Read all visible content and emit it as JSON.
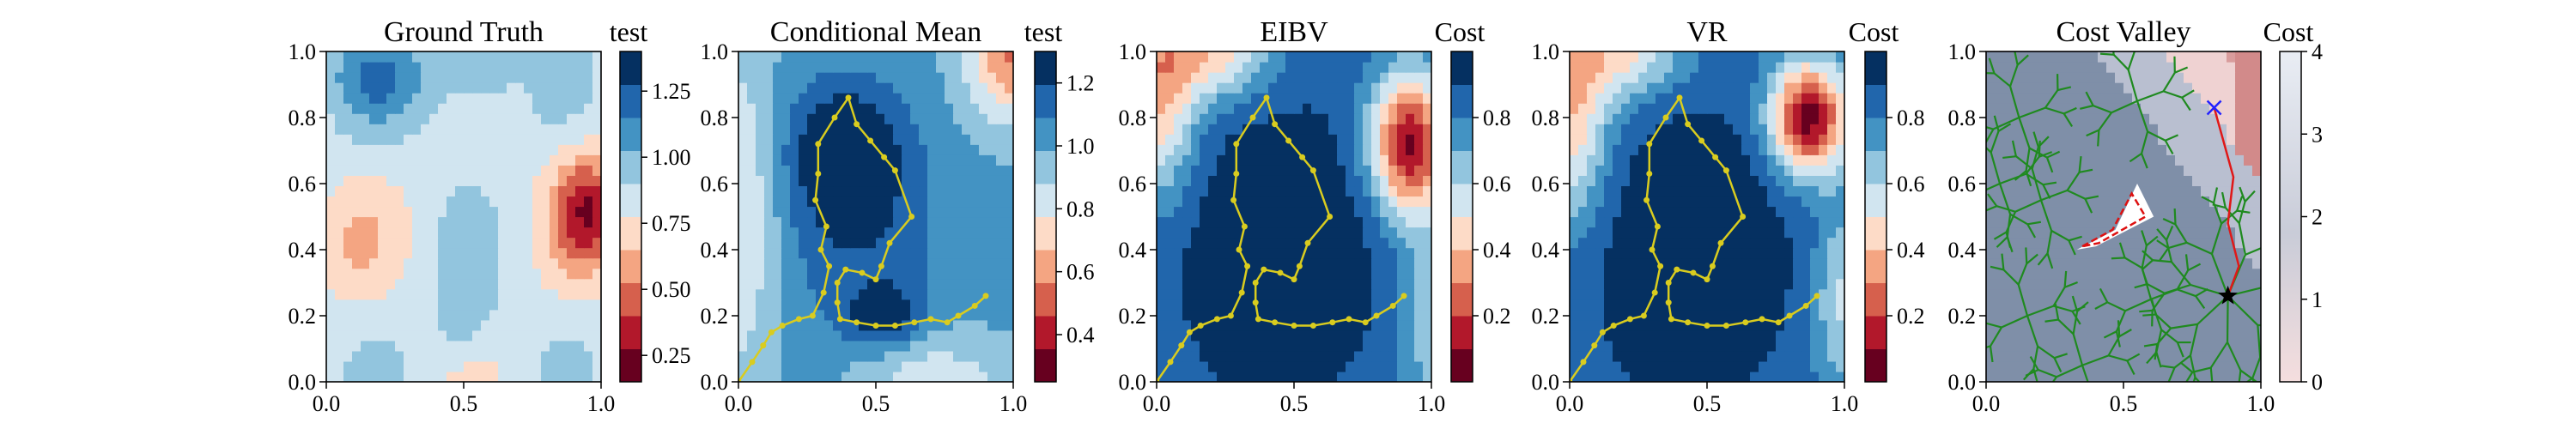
{
  "chart_data": [
    {
      "type": "heatmap",
      "title": "Ground Truth",
      "colorbar_label": "test",
      "colormap": "RdBu",
      "levels": 10,
      "xlim": [
        0,
        1
      ],
      "ylim": [
        0,
        1
      ],
      "xticks": [
        "0.0",
        "0.5",
        "1.0"
      ],
      "yticks": [
        "0.0",
        "0.2",
        "0.4",
        "0.6",
        "0.8",
        "1.0"
      ],
      "colorbar_range": [
        0.15,
        1.4
      ],
      "colorbar_ticks": [
        {
          "value": 0.25,
          "label": "0.25"
        },
        {
          "value": 0.5,
          "label": "0.50"
        },
        {
          "value": 0.75,
          "label": "0.75"
        },
        {
          "value": 1.0,
          "label": "1.00"
        },
        {
          "value": 1.25,
          "label": "1.25"
        }
      ]
    },
    {
      "type": "heatmap",
      "title": "Conditional Mean",
      "colorbar_label": "test",
      "colormap": "RdBu",
      "levels": 10,
      "xlim": [
        0,
        1
      ],
      "ylim": [
        0,
        1
      ],
      "xticks": [
        "0.0",
        "0.5",
        "1.0"
      ],
      "yticks": [
        "0.0",
        "0.2",
        "0.4",
        "0.6",
        "0.8",
        "1.0"
      ],
      "colorbar_range": [
        0.25,
        1.3
      ],
      "colorbar_ticks": [
        {
          "value": 0.4,
          "label": "0.4"
        },
        {
          "value": 0.6,
          "label": "0.6"
        },
        {
          "value": 0.8,
          "label": "0.8"
        },
        {
          "value": 1.0,
          "label": "1.0"
        },
        {
          "value": 1.2,
          "label": "1.2"
        }
      ],
      "path": "yellow"
    },
    {
      "type": "heatmap",
      "title": "EIBV",
      "colorbar_label": "Cost",
      "colormap": "RdBu",
      "levels": 10,
      "xlim": [
        0,
        1
      ],
      "ylim": [
        0,
        1
      ],
      "xticks": [
        "0.0",
        "0.5",
        "1.0"
      ],
      "yticks": [
        "0.0",
        "0.2",
        "0.4",
        "0.6",
        "0.8",
        "1.0"
      ],
      "colorbar_range": [
        0.0,
        1.0
      ],
      "colorbar_ticks": [
        {
          "value": 0.2,
          "label": "0.2"
        },
        {
          "value": 0.4,
          "label": "0.4"
        },
        {
          "value": 0.6,
          "label": "0.6"
        },
        {
          "value": 0.8,
          "label": "0.8"
        }
      ],
      "path": "yellow"
    },
    {
      "type": "heatmap",
      "title": "VR",
      "colorbar_label": "Cost",
      "colormap": "RdBu",
      "levels": 10,
      "xlim": [
        0,
        1
      ],
      "ylim": [
        0,
        1
      ],
      "xticks": [
        "0.0",
        "0.5",
        "1.0"
      ],
      "yticks": [
        "0.0",
        "0.2",
        "0.4",
        "0.6",
        "0.8",
        "1.0"
      ],
      "colorbar_range": [
        0.0,
        1.0
      ],
      "colorbar_ticks": [
        {
          "value": 0.2,
          "label": "0.2"
        },
        {
          "value": 0.4,
          "label": "0.4"
        },
        {
          "value": 0.6,
          "label": "0.6"
        },
        {
          "value": 0.8,
          "label": "0.8"
        }
      ],
      "path": "yellow"
    },
    {
      "type": "heatmap",
      "title": "Cost Valley",
      "colorbar_label": "Cost",
      "colormap": "light blue-gray to red",
      "xlim": [
        0,
        1
      ],
      "ylim": [
        0,
        1
      ],
      "xticks": [
        "0.0",
        "0.5",
        "1.0"
      ],
      "yticks": [
        "0.0",
        "0.2",
        "0.4",
        "0.6",
        "0.8",
        "1.0"
      ],
      "colorbar_range": [
        0,
        4
      ],
      "colorbar_ticks": [
        {
          "value": 0,
          "label": "0"
        },
        {
          "value": 1,
          "label": "1"
        },
        {
          "value": 2,
          "label": "2"
        },
        {
          "value": 3,
          "label": "3"
        },
        {
          "value": 4,
          "label": "4"
        }
      ],
      "tree_color": "green",
      "start_marker": {
        "x": 0.88,
        "y": 0.26
      },
      "goal_marker": {
        "x": 0.83,
        "y": 0.83
      },
      "obstacle_polygon": [
        [
          0.33,
          0.4
        ],
        [
          0.47,
          0.46
        ],
        [
          0.55,
          0.6
        ],
        [
          0.61,
          0.5
        ],
        [
          0.4,
          0.41
        ]
      ]
    }
  ],
  "path_points": [
    [
      0.0,
      0.0
    ],
    [
      0.05,
      0.06
    ],
    [
      0.09,
      0.11
    ],
    [
      0.12,
      0.15
    ],
    [
      0.16,
      0.17
    ],
    [
      0.22,
      0.19
    ],
    [
      0.27,
      0.2
    ],
    [
      0.31,
      0.27
    ],
    [
      0.33,
      0.35
    ],
    [
      0.3,
      0.4
    ],
    [
      0.32,
      0.47
    ],
    [
      0.28,
      0.55
    ],
    [
      0.29,
      0.63
    ],
    [
      0.29,
      0.72
    ],
    [
      0.35,
      0.8
    ],
    [
      0.4,
      0.86
    ],
    [
      0.43,
      0.78
    ],
    [
      0.48,
      0.73
    ],
    [
      0.53,
      0.68
    ],
    [
      0.57,
      0.64
    ],
    [
      0.63,
      0.5
    ],
    [
      0.55,
      0.42
    ],
    [
      0.52,
      0.35
    ],
    [
      0.5,
      0.31
    ],
    [
      0.45,
      0.33
    ],
    [
      0.39,
      0.34
    ],
    [
      0.36,
      0.3
    ],
    [
      0.36,
      0.24
    ],
    [
      0.37,
      0.19
    ],
    [
      0.43,
      0.18
    ],
    [
      0.5,
      0.17
    ],
    [
      0.57,
      0.17
    ],
    [
      0.64,
      0.18
    ],
    [
      0.7,
      0.19
    ],
    [
      0.76,
      0.18
    ],
    [
      0.8,
      0.2
    ],
    [
      0.86,
      0.23
    ],
    [
      0.9,
      0.26
    ]
  ]
}
